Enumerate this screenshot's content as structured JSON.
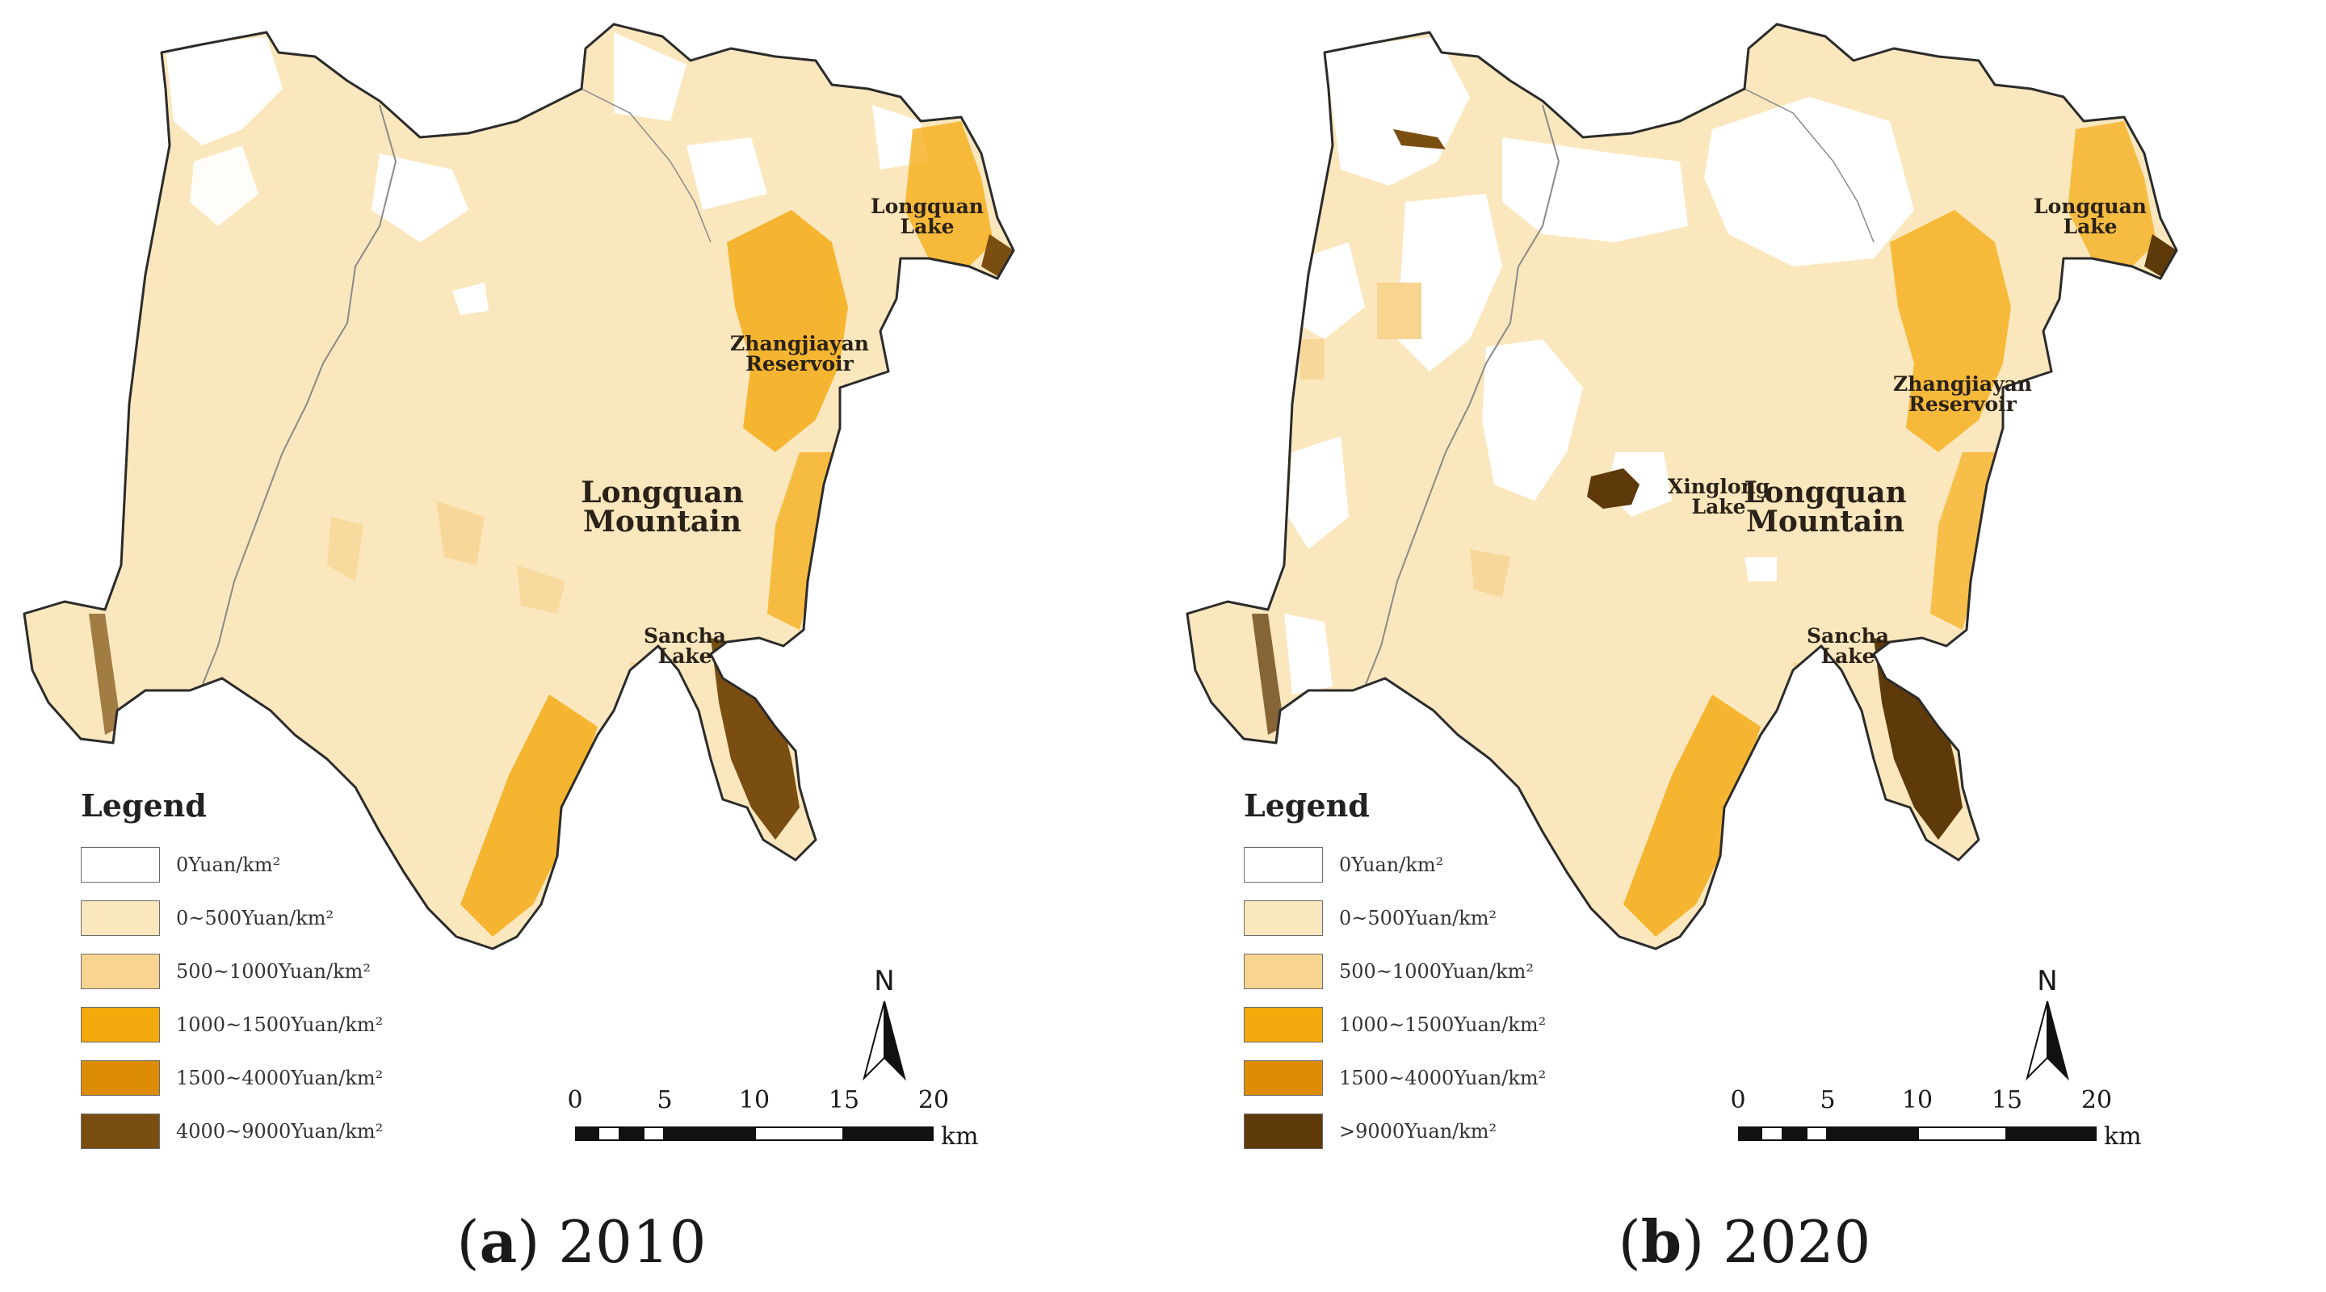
{
  "colors": {
    "c0": "#ffffff",
    "c1": "#fbe7bd",
    "c2": "#f8d491",
    "c3": "#f4a90d",
    "c4": "#dc8c06",
    "c5": "#7a4e10",
    "boundary": "#2b2b2b",
    "river": "#8a8a8a"
  },
  "panels": [
    {
      "id": "a",
      "caption_letter": "a",
      "caption_year": "2010",
      "places": {
        "longquan_lake": [
          "Longquan",
          "Lake"
        ],
        "zhangjiayan": [
          "Zhangjiayan",
          "Reservoir"
        ],
        "longquan_mountain": [
          "Longquan",
          "Mountain"
        ],
        "sancha_lake": [
          "Sancha",
          "Lake"
        ]
      },
      "legend_title": "Legend",
      "legend": [
        {
          "label": "0Yuan/km²",
          "color": "#ffffff"
        },
        {
          "label": "0~500Yuan/km²",
          "color": "#fbe7bd"
        },
        {
          "label": "500~1000Yuan/km²",
          "color": "#f8d491"
        },
        {
          "label": "1000~1500Yuan/km²",
          "color": "#f4a90d"
        },
        {
          "label": "1500~4000Yuan/km²",
          "color": "#dc8c06"
        },
        {
          "label": "4000~9000Yuan/km²",
          "color": "#7a4e10"
        }
      ],
      "north_label": "N",
      "scale": {
        "ticks": [
          "0",
          "5",
          "10",
          "15",
          "20"
        ],
        "unit": "km"
      }
    },
    {
      "id": "b",
      "caption_letter": "b",
      "caption_year": "2020",
      "places": {
        "longquan_lake": [
          "Longquan",
          "Lake"
        ],
        "zhangjiayan": [
          "Zhangjiayan",
          "Reservoir"
        ],
        "longquan_mountain": [
          "Longquan",
          "Mountain"
        ],
        "sancha_lake": [
          "Sancha",
          "Lake"
        ],
        "xinglong_lake": [
          "Xinglong",
          "Lake"
        ]
      },
      "legend_title": "Legend",
      "legend": [
        {
          "label": "0Yuan/km²",
          "color": "#ffffff"
        },
        {
          "label": "0~500Yuan/km²",
          "color": "#fbe7bd"
        },
        {
          "label": "500~1000Yuan/km²",
          "color": "#f8d491"
        },
        {
          "label": "1000~1500Yuan/km²",
          "color": "#f4a90d"
        },
        {
          "label": "1500~4000Yuan/km²",
          "color": "#dc8c06"
        },
        {
          "label": ">9000Yuan/km²",
          "color": "#5e3a0a"
        }
      ],
      "north_label": "N",
      "scale": {
        "ticks": [
          "0",
          "5",
          "10",
          "15",
          "20"
        ],
        "unit": "km"
      }
    }
  ]
}
